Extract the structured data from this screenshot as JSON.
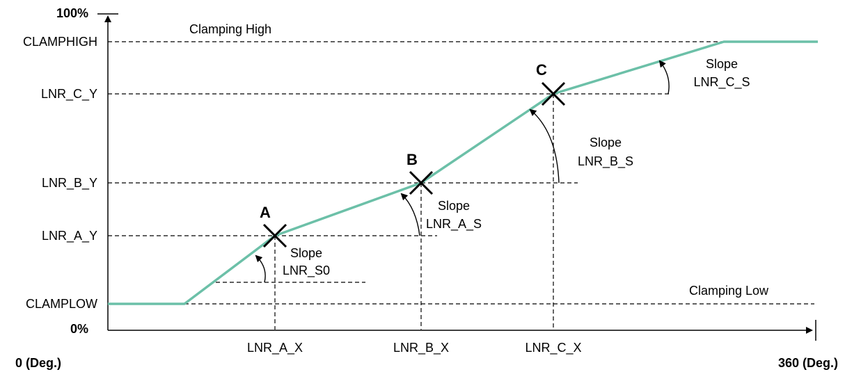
{
  "y_axis": {
    "top_label": "100%",
    "bottom_label": "0%",
    "ticks": [
      "CLAMPHIGH",
      "LNR_C_Y",
      "LNR_B_Y",
      "LNR_A_Y",
      "CLAMPLOW"
    ]
  },
  "x_axis": {
    "start_label": "0 (Deg.)",
    "end_label": "360 (Deg.)",
    "ticks": [
      "LNR_A_X",
      "LNR_B_X",
      "LNR_C_X"
    ]
  },
  "annotations": {
    "clamping_high": "Clamping High",
    "clamping_low": "Clamping Low"
  },
  "points": [
    {
      "letter": "A",
      "slope_word": "Slope",
      "slope_name": "LNR_S0"
    },
    {
      "letter": "B",
      "slope_word": "Slope",
      "slope_name": "LNR_A_S"
    },
    {
      "letter": "C",
      "slope_word": "Slope",
      "slope_name": "LNR_B_S"
    }
  ],
  "final_slope": {
    "slope_word": "Slope",
    "slope_name": "LNR_C_S"
  },
  "colors": {
    "curve": "#6cc0a8",
    "axis": "#000000"
  }
}
